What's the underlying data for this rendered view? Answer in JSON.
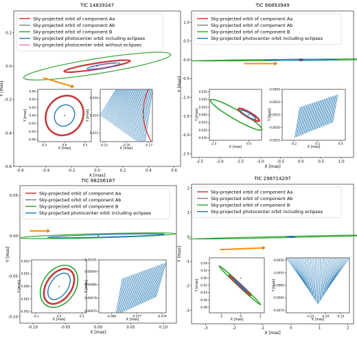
{
  "legend_items": [
    {
      "label": "Sky-projected orbit of component Aa",
      "color": "#d62728"
    },
    {
      "label": "Sky-projected orbit of component Ab",
      "color": "#7f7f7f"
    },
    {
      "label": "Sky-projected orbit of component B",
      "color": "#2ca02c"
    },
    {
      "label": "Sky-projected photocenter orbit including eclipses",
      "color": "#1f77b4"
    },
    {
      "label": "Sky-projected photocenter orbit without eclipses",
      "color": "#e377c2"
    }
  ],
  "colors": {
    "Aa": "#d62728",
    "Ab": "#7f7f7f",
    "B": "#2ca02c",
    "photo": "#1f77b4",
    "noecl": "#e377c2",
    "arrow": "#ff8c00"
  },
  "chart_data": [
    {
      "type": "line",
      "title": "TIC 14839347",
      "xlabel": "X [mas]",
      "ylabel": "Y [mas]",
      "xlim": [
        -0.65,
        0.65
      ],
      "ylim": [
        -0.6,
        0.33
      ],
      "xticks": [
        "-0.6",
        "-0.4",
        "-0.2",
        "0.0",
        "0.2",
        "0.4",
        "0.6"
      ],
      "yticks": [
        "-0.6",
        "-0.4",
        "-0.2",
        "0.0",
        "0.2"
      ],
      "legend_count": 5,
      "legend_location": "upper left",
      "main_orbits": {
        "B": {
          "cx": 0.0,
          "cy": 0.0,
          "rx": 0.58,
          "ry": 0.045,
          "angle_deg": -9.0
        },
        "Aa": {
          "cx": 0.0,
          "cy": 0.0,
          "rx": 0.26,
          "ry": 0.018,
          "angle_deg": -9.0
        },
        "photo": {
          "cx": 0.05,
          "cy": 0.0,
          "rx": 0.13,
          "ry": 0.012,
          "angle_deg": -9.0
        }
      },
      "arrow": {
        "x0": -0.42,
        "y0": -0.07,
        "x1": -0.2,
        "y1": -0.12
      },
      "insets": [
        {
          "xlabel": "X [mas]",
          "ylabel": "Y [mas]",
          "xlim": [
            -0.65,
            0.65
          ],
          "ylim": [
            -0.065,
            0.065
          ],
          "xticks": [
            "-0.5",
            "0.0",
            "0.5"
          ],
          "yticks": [
            "-0.06",
            "-0.04",
            "-0.02",
            "0.00",
            "0.02",
            "0.04",
            "0.06"
          ],
          "orbits": {
            "Aa": {
              "cx": 0.0,
              "cy": 0.0,
              "rx": 0.5,
              "ry": 0.045,
              "angle_deg": -55
            },
            "photo": {
              "cx": 0.0,
              "cy": 0.0,
              "rx": 0.27,
              "ry": 0.024,
              "angle_deg": -55
            }
          }
        },
        {
          "xlabel": "X [mas]",
          "ylabel": "Y [mas]",
          "xlim": [
            -0.235,
            -0.165
          ],
          "ylim": [
            0.011,
            0.017
          ],
          "xticks": [
            "-0.23",
            "-0.20",
            "-0.17"
          ],
          "yticks": [
            "0.012",
            "0.014",
            "0.016"
          ]
        }
      ]
    },
    {
      "type": "line",
      "title": "TIC 66893949",
      "xlabel": "X [mas]",
      "ylabel": "Y [mas]",
      "xlim": [
        -2.7,
        1.3
      ],
      "ylim": [
        -2.6,
        1.3
      ],
      "xticks": [
        "-2.5",
        "-2.0",
        "-1.5",
        "-1.0",
        "-0.5",
        "0.0",
        "0.5",
        "1.0"
      ],
      "yticks": [
        "-2.5",
        "-2.0",
        "-1.5",
        "-1.0",
        "-0.5",
        "0.0",
        "0.5",
        "1.0"
      ],
      "legend_count": 4,
      "legend_location": "upper left",
      "main_orbits": {
        "B": {
          "cx": 0.0,
          "cy": 0.0,
          "rx": 2.7,
          "ry": 0.012,
          "angle_deg": -0.5
        },
        "Aa": {
          "cx": 0.0,
          "cy": 0.0,
          "rx": 0.06,
          "ry": 0.005,
          "angle_deg": 0
        },
        "photo": {
          "cx": 0.0,
          "cy": 0.0,
          "rx": 0.9,
          "ry": 0.004,
          "angle_deg": -0.5
        }
      },
      "arrow": {
        "x0": -1.4,
        "y0": -0.1,
        "x1": -0.65,
        "y1": -0.1
      },
      "insets": [
        {
          "xlabel": "X [mas]",
          "ylabel": "Y [mas]",
          "xlim": [
            -2.8,
            0.9
          ],
          "ylim": [
            -0.033,
            0.033
          ],
          "xticks": [
            "-2.5",
            "0.0"
          ],
          "yticks": [
            "-0.030",
            "-0.020",
            "-0.010",
            "0.000",
            "0.010",
            "0.020",
            "0.030"
          ],
          "orbits": {
            "B": {
              "cx": -0.9,
              "cy": 0.0,
              "rx": 2.1,
              "ry": 0.006,
              "angle_deg": 30
            },
            "Aa": {
              "cx": 0.0,
              "cy": 0.0,
              "rx": 0.85,
              "ry": 0.0032,
              "angle_deg": 30
            },
            "photo": {
              "cx": -0.05,
              "cy": 0.0,
              "rx": 0.6,
              "ry": 0.0025,
              "angle_deg": 30
            }
          }
        },
        {
          "xlabel": "X [mas]",
          "ylabel": "Y [mas]",
          "xlim": [
            -0.25,
            0.02
          ],
          "ylim": [
            -0.0025,
            -0.0005
          ],
          "xticks": [
            "-0.2",
            "-0.1",
            "0.0"
          ],
          "yticks": [
            "-0.0025",
            "-0.0020",
            "-0.0015",
            "-0.0010",
            "-0.0005"
          ]
        }
      ]
    },
    {
      "type": "line",
      "title": "TIC 88206187",
      "xlabel": "X [mas]",
      "ylabel": "Y [mas]",
      "xlim": [
        -0.12,
        0.12
      ],
      "ylim": [
        -0.108,
        0.062
      ],
      "xticks": [
        "-0.10",
        "-0.05",
        "0.00",
        "0.05",
        "0.10"
      ],
      "yticks": [
        "-0.10",
        "-0.05",
        "0.00",
        "0.05"
      ],
      "legend_count": 4,
      "legend_location": "upper left",
      "main_orbits": {
        "B": {
          "cx": 0.0,
          "cy": 0.0,
          "rx": 0.12,
          "ry": 0.0025,
          "angle_deg": -1.5
        },
        "photo": {
          "cx": 0.012,
          "cy": 0.0,
          "rx": 0.09,
          "ry": 0.0015,
          "angle_deg": -1.5
        }
      },
      "arrow": {
        "x0": -0.105,
        "y0": 0.006,
        "x1": -0.078,
        "y1": 0.006
      },
      "insets": [
        {
          "xlabel": "X [mas]",
          "ylabel": "Y [mas]",
          "xlim": [
            -0.12,
            0.12
          ],
          "ylim": [
            -0.0021,
            0.0021
          ],
          "xticks": [
            "-0.1",
            "0.0",
            "0.1"
          ],
          "yticks": [
            "-0.002",
            "-0.001",
            "0.000",
            "0.001",
            "0.002"
          ],
          "orbits": {
            "B": {
              "cx": 0.0,
              "cy": 0.0,
              "rx": 0.1,
              "ry": 0.0013,
              "angle_deg": -55
            },
            "Aa": {
              "cx": 0.0,
              "cy": 0.0,
              "rx": 0.085,
              "ry": 0.001,
              "angle_deg": -55
            },
            "photo": {
              "cx": 0.0,
              "cy": 0.0,
              "rx": 0.065,
              "ry": 0.0007,
              "angle_deg": -55
            }
          }
        },
        {
          "xlabel": "X [mas]",
          "ylabel": "Y [mas]",
          "xlim": [
            -0.0815,
            -0.0735
          ],
          "ylim": [
            0.00069,
            0.00101
          ],
          "xticks": [
            "-0.080",
            "-0.077",
            "-0.074"
          ],
          "yticks": [
            "0.00070",
            "0.00078",
            "0.00086",
            "0.00094",
            "0.00101"
          ]
        }
      ]
    },
    {
      "type": "line",
      "title": "TIC 298714297",
      "xlabel": "X [mas]",
      "ylabel": "Y [mas]",
      "xlim": [
        -3.5,
        2.2
      ],
      "ylim": [
        -3.55,
        2.15
      ],
      "xticks": [
        "-3",
        "-2",
        "-1",
        "0",
        "1",
        "2"
      ],
      "yticks": [
        "-3",
        "-2",
        "-1",
        "0",
        "1",
        "2"
      ],
      "legend_count": 4,
      "legend_location": "upper left",
      "main_orbits": {
        "B": {
          "cx": 0.0,
          "cy": 0.0,
          "rx": 3.6,
          "ry": 0.012,
          "angle_deg": -1.2
        },
        "photo": {
          "cx": 0.0,
          "cy": 0.0,
          "rx": 0.15,
          "ry": 0.006,
          "angle_deg": 0
        }
      },
      "arrow": {
        "x0": -2.5,
        "y0": -0.52,
        "x1": -1.0,
        "y1": -0.45
      },
      "insets": [
        {
          "xlabel": "X [mas]",
          "ylabel": "Y [mas]",
          "xlim": [
            -3.2,
            2.4
          ],
          "ylim": [
            -0.095,
            0.055
          ],
          "xticks": [
            "-2",
            "0",
            "2"
          ],
          "yticks": [
            "-0.08",
            "-0.06",
            "-0.04",
            "-0.02",
            "0.00",
            "0.02",
            "0.04"
          ],
          "orbits": {
            "B": {
              "cx": -0.1,
              "cy": -0.02,
              "rx": 2.9,
              "ry": 0.004,
              "angle_deg": 43
            },
            "Aa": {
              "cx": -0.1,
              "cy": -0.02,
              "rx": 1.5,
              "ry": 0.0025,
              "angle_deg": 43
            },
            "photo": {
              "cx": -0.1,
              "cy": -0.02,
              "rx": 1.0,
              "ry": 0.0012,
              "angle_deg": 43
            }
          }
        },
        {
          "xlabel": "X [mas]",
          "ylabel": "Y [mas]",
          "xlim": [
            -0.33,
            -0.12
          ],
          "ylim": [
            -0.0071,
            -0.0049
          ],
          "xticks": [
            "-0.25",
            "-0.20",
            "-0.15"
          ],
          "yticks": [
            "-0.0070",
            "-0.0065",
            "-0.0060",
            "-0.0055",
            "-0.0050"
          ]
        }
      ]
    }
  ]
}
